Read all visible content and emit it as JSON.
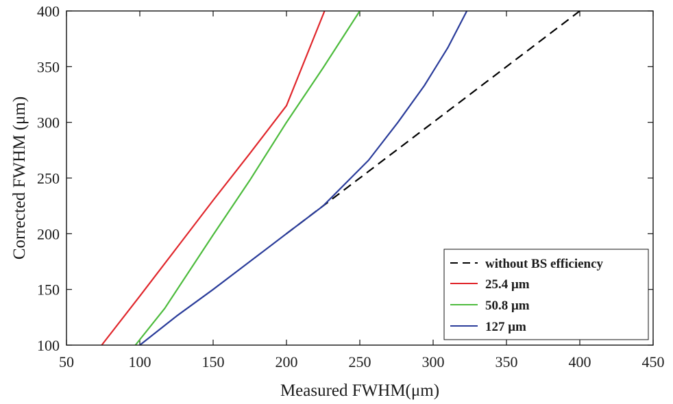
{
  "chart_data": {
    "type": "line",
    "title": "",
    "xlabel": "Measured FWHM(μm)",
    "ylabel": "Corrected FWHM (μm)",
    "xlim": [
      50,
      450
    ],
    "ylim": [
      100,
      400
    ],
    "xticks": [
      50,
      100,
      150,
      200,
      250,
      300,
      350,
      400,
      450
    ],
    "yticks": [
      100,
      150,
      200,
      250,
      300,
      350,
      400
    ],
    "xtick_labels": [
      "50",
      "100",
      "150",
      "200",
      "250",
      "300",
      "350",
      "400",
      "450"
    ],
    "ytick_labels": [
      "100",
      "150",
      "200",
      "250",
      "300",
      "350",
      "400"
    ],
    "grid": false,
    "legend_position": "bottom-right",
    "series": [
      {
        "name": "without BS efficiency",
        "label": "without BS efficiency",
        "color": "#000000",
        "dash": "dashed",
        "x": [
          200,
          400
        ],
        "y": [
          200,
          400
        ]
      },
      {
        "name": "25.4 μm",
        "label": "25.4 μm",
        "color": "#e0262b",
        "dash": "solid",
        "x": [
          74,
          100,
          125,
          150,
          175,
          200,
          226
        ],
        "y": [
          100,
          144,
          187,
          230,
          272,
          315,
          400
        ]
      },
      {
        "name": "50.8 μm",
        "label": "50.8 μm",
        "color": "#4cbb3c",
        "dash": "solid",
        "x": [
          97,
          117,
          150,
          175,
          200,
          225,
          250
        ],
        "y": [
          100,
          133,
          199,
          248,
          300,
          349,
          400
        ]
      },
      {
        "name": "127 μm",
        "label": "127 μm",
        "color": "#2a3c9a",
        "dash": "solid",
        "x": [
          100,
          125,
          150,
          175,
          200,
          225,
          256,
          276,
          294,
          310,
          323
        ],
        "y": [
          100,
          126,
          150,
          175,
          200,
          225,
          266,
          300,
          333,
          367,
          400
        ]
      }
    ]
  }
}
